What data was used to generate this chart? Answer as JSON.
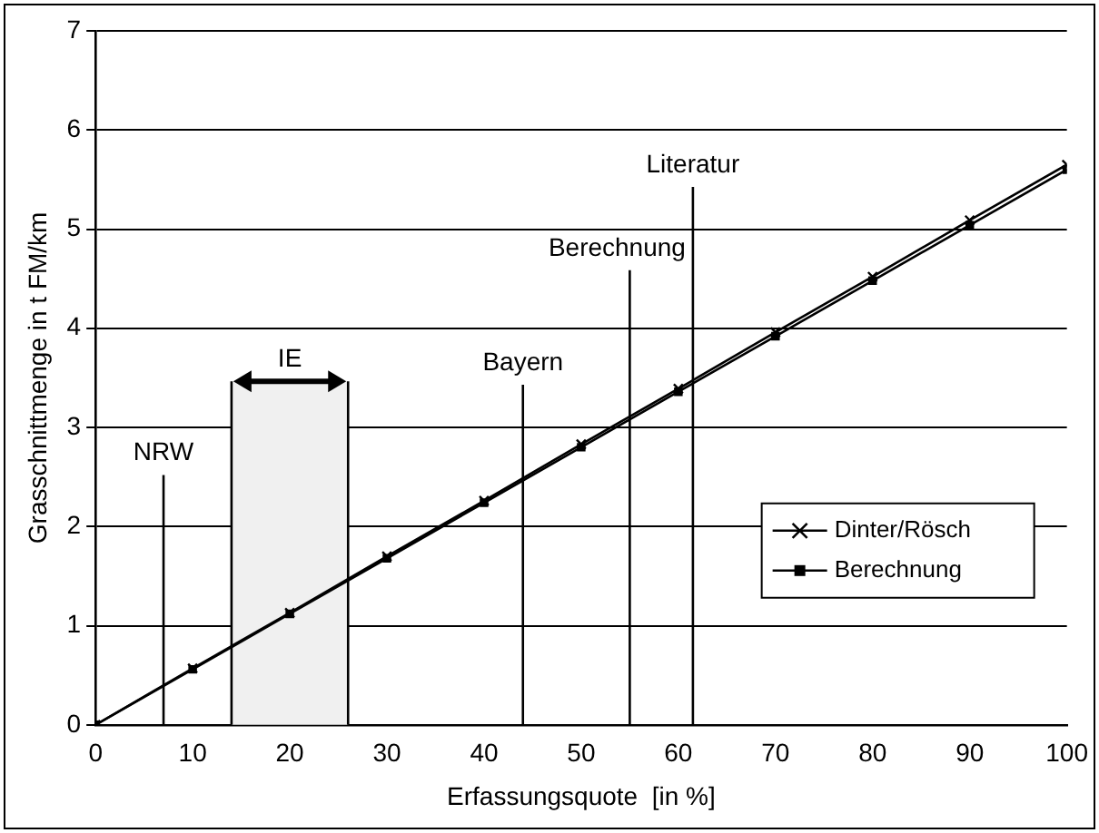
{
  "chart_data": {
    "type": "line",
    "xlabel": "Erfassungsquote  [in %]",
    "ylabel": "Grasschnittmenge in t FM/km",
    "x": [
      0,
      10,
      20,
      30,
      40,
      50,
      60,
      70,
      80,
      90,
      100
    ],
    "series": [
      {
        "name": "Dinter/Rösch",
        "color": "#000000",
        "marker": "cross",
        "values": [
          0,
          0.57,
          1.13,
          1.7,
          2.26,
          2.83,
          3.39,
          3.96,
          4.52,
          5.09,
          5.65
        ]
      },
      {
        "name": "Berechnung",
        "color": "#000000",
        "marker": "square",
        "values": [
          0,
          0.56,
          1.12,
          1.68,
          2.24,
          2.8,
          3.36,
          3.92,
          4.48,
          5.04,
          5.6
        ]
      }
    ],
    "xlim": [
      0,
      100
    ],
    "xticks": [
      0,
      10,
      20,
      30,
      40,
      50,
      60,
      70,
      80,
      90,
      100
    ],
    "ylim": [
      0,
      7
    ],
    "yticks": [
      0,
      1,
      2,
      3,
      4,
      5,
      6,
      7
    ],
    "grid": "y",
    "legend": "bottom right",
    "line_style": "solid",
    "ref_lines": [
      {
        "axis": "x",
        "value": 7,
        "label": "NRW"
      },
      {
        "axis": "x",
        "value": 44,
        "label": "Bayern"
      },
      {
        "axis": "x",
        "value": 55,
        "label": "Berechnung"
      },
      {
        "axis": "x",
        "value": 61.5,
        "label": "Literatur"
      }
    ],
    "bands": [
      {
        "axis": "x",
        "from": 14,
        "to": 26,
        "label": "IE",
        "color": "#f0f0f0"
      }
    ]
  }
}
